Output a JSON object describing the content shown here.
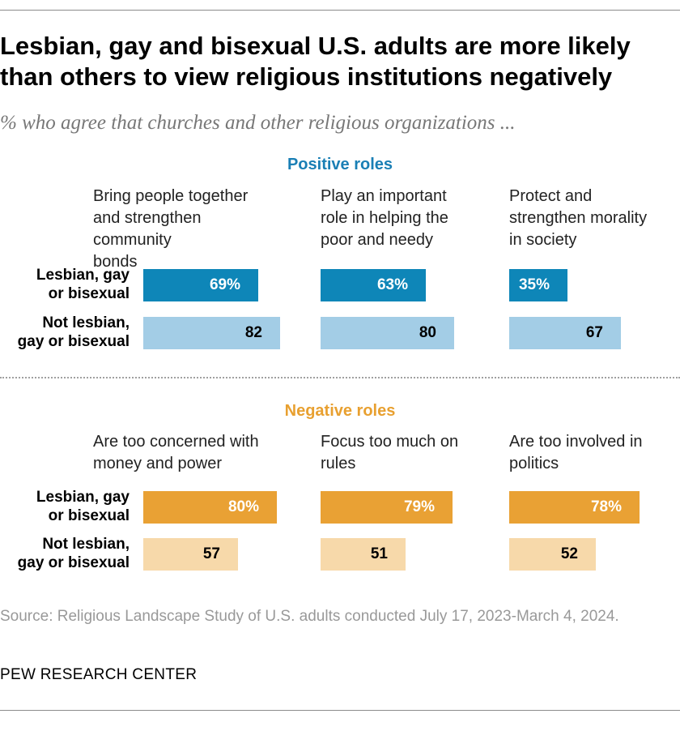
{
  "title": "Lesbian, gay and bisexual U.S. adults are more likely than others to view religious institutions negatively",
  "subtitle": "% who agree that churches and other religious organizations ...",
  "colors": {
    "positive_label": "#1a7fb5",
    "positive_lgb": "#0e86b8",
    "positive_not": "#a3cde6",
    "negative_label": "#e8a030",
    "negative_lgb": "#e9a134",
    "negative_not": "#f7d9aa",
    "text_light": "#ffffff",
    "text_dark": "#000000"
  },
  "chart_data": [
    {
      "type": "bar",
      "orientation": "horizontal",
      "section": "Positive roles",
      "value_unit": "%",
      "xlim": [
        0,
        100
      ],
      "categories": [
        "Bring people together and strengthen community bonds",
        "Play an important role in helping the poor and needy",
        "Protect and strengthen morality in society"
      ],
      "series": [
        {
          "name": "Lesbian, gay or bisexual",
          "values": [
            69,
            63,
            35
          ],
          "labels": [
            "69%",
            "63%",
            "35%"
          ]
        },
        {
          "name": "Not lesbian, gay or bisexual",
          "values": [
            82,
            80,
            67
          ],
          "labels": [
            "82",
            "80",
            "67"
          ]
        }
      ]
    },
    {
      "type": "bar",
      "orientation": "horizontal",
      "section": "Negative roles",
      "value_unit": "%",
      "xlim": [
        0,
        100
      ],
      "categories": [
        "Are too concerned with money and power",
        "Focus too much on rules",
        "Are too involved in politics"
      ],
      "series": [
        {
          "name": "Lesbian, gay or bisexual",
          "values": [
            80,
            79,
            78
          ],
          "labels": [
            "80%",
            "79%",
            "78%"
          ]
        },
        {
          "name": "Not lesbian, gay or bisexual",
          "values": [
            57,
            51,
            52
          ],
          "labels": [
            "57",
            "51",
            "52"
          ]
        }
      ]
    }
  ],
  "group_labels": {
    "lgb": [
      "Lesbian, gay",
      "or bisexual"
    ],
    "not_lgb": [
      "Not lesbian,",
      "gay or bisexual"
    ]
  },
  "source": "Source: Religious Landscape Study of U.S. adults conducted July 17, 2023-March 4, 2024.",
  "org": "PEW RESEARCH CENTER"
}
